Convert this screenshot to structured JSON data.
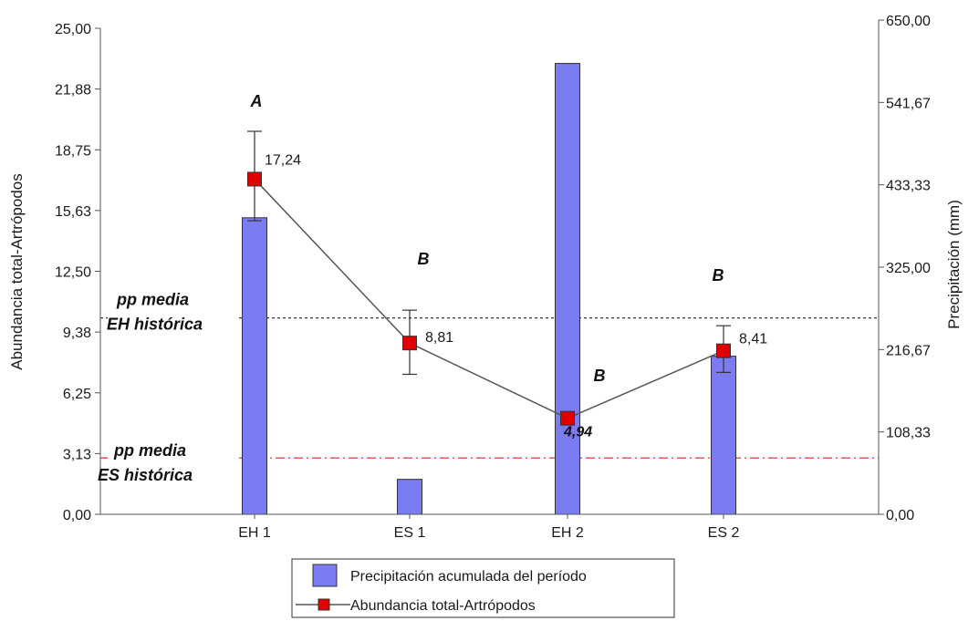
{
  "chart_data": {
    "type": "bar+line",
    "categories": [
      "EH 1",
      "ES 1",
      "EH 2",
      "ES 2"
    ],
    "left_axis": {
      "label": "Abundancia total-Artrópodos",
      "ylim": [
        0,
        25
      ],
      "ticks": [
        "0,00",
        "3,13",
        "6,25",
        "9,38",
        "12,50",
        "15,63",
        "18,75",
        "21,88",
        "25,00"
      ]
    },
    "right_axis": {
      "label": "Precipitación (mm)",
      "ylim": [
        0,
        650
      ],
      "ticks": [
        "0,00",
        "108,33",
        "216,67",
        "325,00",
        "433,33",
        "541,67",
        "650,00"
      ]
    },
    "series": [
      {
        "name": "Precipitación acumulada del período",
        "type": "bar",
        "axis": "right",
        "color": "#7b7bf2",
        "values": [
          390,
          46,
          593,
          208
        ]
      },
      {
        "name": "Abundancia total-Artrópodos",
        "type": "line",
        "axis": "left",
        "color": "#e00000",
        "values": [
          17.24,
          8.81,
          4.94,
          8.41
        ],
        "error_low": [
          15.1,
          7.2,
          4.94,
          7.3
        ],
        "error_high": [
          19.7,
          10.5,
          4.94,
          9.7
        ],
        "value_labels": [
          "17,24",
          "8,81",
          "4,94",
          "8,41"
        ],
        "group_letters": [
          "A",
          "B",
          "B",
          "B"
        ]
      }
    ],
    "reference_lines": [
      {
        "value": 10.1,
        "axis": "left",
        "style": "dotted",
        "color": "#222222",
        "label_line1": "pp media",
        "label_line2": "EH histórica"
      },
      {
        "value": 2.9,
        "axis": "left",
        "style": "dashdot",
        "color": "#e02020",
        "label_line1": "pp media",
        "label_line2": "ES histórica"
      }
    ],
    "legend": {
      "position": "bottom-center",
      "items": [
        {
          "label": "Precipitación acumulada del período",
          "kind": "bar"
        },
        {
          "label": "Abundancia total-Artrópodos",
          "kind": "line-marker"
        }
      ]
    }
  }
}
